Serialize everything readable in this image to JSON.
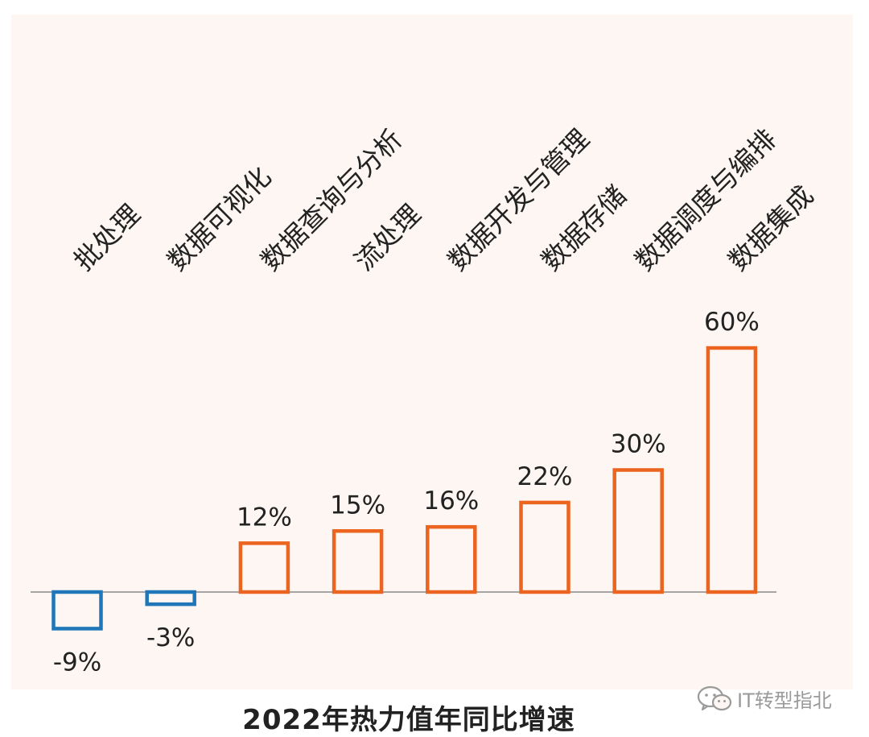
{
  "chart_data": {
    "type": "bar",
    "title": "2022年热力值年同比增速",
    "categories": [
      "批处理",
      "数据可视化",
      "数据查询与分析",
      "流处理",
      "数据开发与管理",
      "数据存储",
      "数据调度与编排",
      "数据集成"
    ],
    "values": [
      -9,
      -3,
      12,
      15,
      16,
      22,
      30,
      60
    ],
    "value_labels": [
      "-9%",
      "-3%",
      "12%",
      "15%",
      "16%",
      "22%",
      "30%",
      "60%"
    ],
    "unit": "%",
    "xlabel": "",
    "ylabel": "",
    "grid": false,
    "legend": "none",
    "colors": {
      "positive": "#eb6420",
      "negative": "#1f76b8",
      "axis": "#8a8a8a",
      "label": "#222222"
    }
  },
  "watermark": {
    "text": "IT转型指北",
    "icon": "wechat-icon"
  }
}
